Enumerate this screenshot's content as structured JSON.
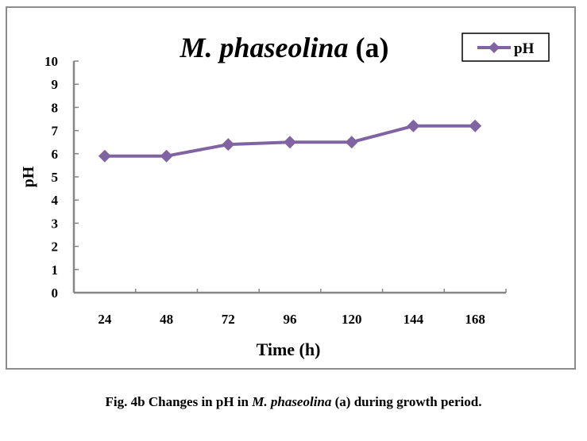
{
  "chart_data": {
    "type": "line",
    "title": {
      "italic_part": "M. phaseolina",
      "normal_part": " (a)"
    },
    "xlabel": "Time (h)",
    "ylabel": "pH",
    "categories": [
      "24",
      "48",
      "72",
      "96",
      "120",
      "144",
      "168"
    ],
    "series": [
      {
        "name": "pH",
        "color": "#8064a2",
        "marker": "diamond",
        "values": [
          5.9,
          5.9,
          6.4,
          6.5,
          6.5,
          7.2,
          7.2
        ]
      }
    ],
    "ylim": [
      0,
      10
    ],
    "yticks": [
      0,
      1,
      2,
      3,
      4,
      5,
      6,
      7,
      8,
      9,
      10
    ],
    "grid": false,
    "legend": {
      "position": "top-right",
      "entries": [
        "pH"
      ]
    }
  },
  "caption": {
    "prefix": "Fig. 4b Changes in pH in ",
    "italic": "M. phaseolina",
    "suffix": " (a) during growth period."
  },
  "colors": {
    "series": "#8064a2",
    "axis": "#868686",
    "frame": "#8c8c8c",
    "text": "#000000"
  }
}
